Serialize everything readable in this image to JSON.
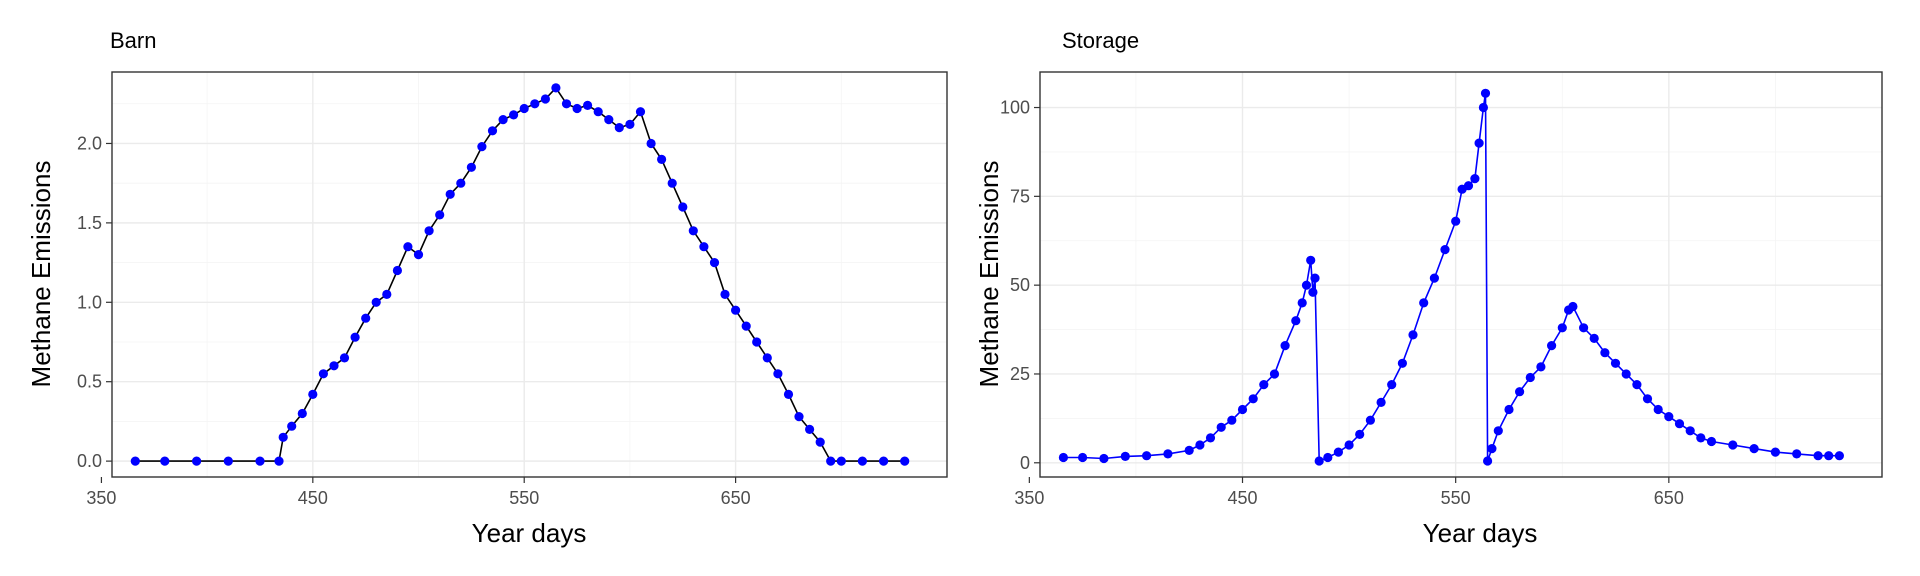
{
  "colors": {
    "point": "#0000ff",
    "barn_line": "#000000",
    "storage_line": "#0000ff",
    "grid": "#ebebeb",
    "border": "#333333",
    "tick_text": "#4d4d4d"
  },
  "chart_data": [
    {
      "type": "line",
      "title": "Barn",
      "xlabel": "Year days",
      "ylabel": "Methane Emissions",
      "xlim": [
        355,
        750
      ],
      "ylim": [
        -0.1,
        2.45
      ],
      "x_ticks": [
        350,
        450,
        550,
        650
      ],
      "x_tick_labels": [
        "350",
        "450",
        "550",
        "650"
      ],
      "y_ticks": [
        0.0,
        0.5,
        1.0,
        1.5,
        2.0
      ],
      "y_tick_labels": [
        "0.0",
        "0.5",
        "1.0",
        "1.5",
        "2.0"
      ],
      "grid": true,
      "markers": true,
      "series": [
        {
          "x": [
            366,
            380,
            395,
            410,
            425,
            434,
            436,
            440,
            445,
            450,
            455,
            460,
            465,
            470,
            475,
            480,
            485,
            490,
            495,
            500,
            505,
            510,
            515,
            520,
            525,
            530,
            535,
            540,
            545,
            550,
            555,
            560,
            565,
            570,
            575,
            580,
            585,
            590,
            595,
            600,
            605,
            610,
            615,
            620,
            625,
            630,
            635,
            640,
            645,
            650,
            655,
            660,
            665,
            670,
            675,
            680,
            685,
            690,
            695,
            700,
            710,
            720,
            730
          ],
          "y": [
            0.0,
            0.0,
            0.0,
            0.0,
            0.0,
            0.0,
            0.15,
            0.22,
            0.3,
            0.42,
            0.55,
            0.6,
            0.65,
            0.78,
            0.9,
            1.0,
            1.05,
            1.2,
            1.35,
            1.3,
            1.45,
            1.55,
            1.68,
            1.75,
            1.85,
            1.98,
            2.08,
            2.15,
            2.18,
            2.22,
            2.25,
            2.28,
            2.35,
            2.25,
            2.22,
            2.24,
            2.2,
            2.15,
            2.1,
            2.12,
            2.2,
            2.0,
            1.9,
            1.75,
            1.6,
            1.45,
            1.35,
            1.25,
            1.05,
            0.95,
            0.85,
            0.75,
            0.65,
            0.55,
            0.42,
            0.28,
            0.2,
            0.12,
            0.0,
            0.0,
            0.0,
            0.0,
            0.0
          ]
        }
      ]
    },
    {
      "type": "line",
      "title": "Storage",
      "xlabel": "Year days",
      "ylabel": "Methane Emissions",
      "xlim": [
        355,
        750
      ],
      "ylim": [
        -4,
        110
      ],
      "x_ticks": [
        350,
        450,
        550,
        650
      ],
      "x_tick_labels": [
        "350",
        "450",
        "550",
        "650"
      ],
      "y_ticks": [
        0,
        25,
        50,
        75,
        100
      ],
      "y_tick_labels": [
        "0",
        "25",
        "50",
        "75",
        "100"
      ],
      "grid": true,
      "markers": true,
      "series": [
        {
          "x": [
            366,
            375,
            385,
            395,
            405,
            415,
            425,
            430,
            435,
            440,
            445,
            450,
            455,
            460,
            465,
            470,
            475,
            478,
            480,
            482,
            483,
            484,
            486,
            490,
            495,
            500,
            505,
            510,
            515,
            520,
            525,
            530,
            535,
            540,
            545,
            550,
            553,
            556,
            559,
            561,
            563,
            564,
            565,
            567,
            570,
            575,
            580,
            585,
            590,
            595,
            600,
            603,
            605,
            610,
            615,
            620,
            625,
            630,
            635,
            640,
            645,
            650,
            655,
            660,
            665,
            670,
            680,
            690,
            700,
            710,
            720,
            725,
            730
          ],
          "y": [
            1.5,
            1.5,
            1.2,
            1.8,
            2.0,
            2.5,
            3.5,
            5,
            7,
            10,
            12,
            15,
            18,
            22,
            25,
            33,
            40,
            45,
            50,
            57,
            48,
            52,
            0.5,
            1.5,
            3,
            5,
            8,
            12,
            17,
            22,
            28,
            36,
            45,
            52,
            60,
            68,
            77,
            78,
            80,
            90,
            100,
            104,
            0.5,
            4,
            9,
            15,
            20,
            24,
            27,
            33,
            38,
            43,
            44,
            38,
            35,
            31,
            28,
            25,
            22,
            18,
            15,
            13,
            11,
            9,
            7,
            6,
            5,
            4,
            3,
            2.5,
            2,
            2,
            2
          ]
        }
      ]
    }
  ]
}
